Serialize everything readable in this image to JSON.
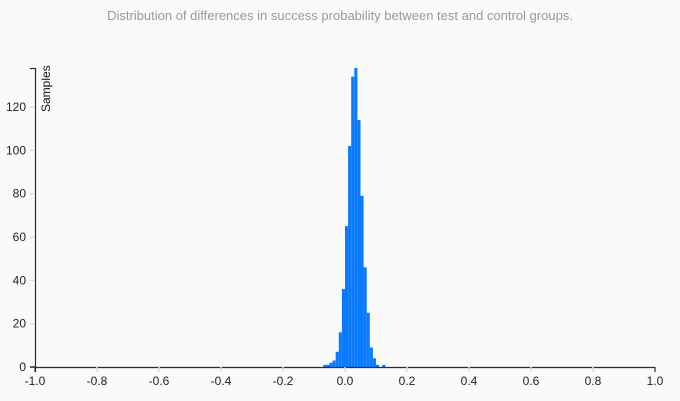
{
  "title": "Distribution of differences in success probability between test and control groups.",
  "colors": {
    "bar": "#0a7bff",
    "axis": "#1f2d3d",
    "tick": "#dddddd",
    "title": "#999999"
  },
  "chart_data": {
    "type": "bar",
    "title": "Distribution of differences in success probability between test and control groups.",
    "xlabel": "",
    "ylabel": "Samples",
    "xlim": [
      -1.0,
      1.0
    ],
    "ylim": [
      0,
      138
    ],
    "grid": false,
    "legend": null,
    "x_ticks": [
      "-1.0",
      "-0.8",
      "-0.6",
      "-0.4",
      "-0.2",
      "0.0",
      "0.2",
      "0.4",
      "0.6",
      "0.8",
      "1.0"
    ],
    "y_ticks": [
      "0",
      "20",
      "40",
      "60",
      "80",
      "100",
      "120"
    ],
    "bin_width": 0.01,
    "bins": [
      {
        "x": -0.07,
        "count": 1
      },
      {
        "x": -0.06,
        "count": 1
      },
      {
        "x": -0.05,
        "count": 2
      },
      {
        "x": -0.04,
        "count": 3
      },
      {
        "x": -0.03,
        "count": 7
      },
      {
        "x": -0.02,
        "count": 16
      },
      {
        "x": -0.01,
        "count": 36
      },
      {
        "x": 0.0,
        "count": 65
      },
      {
        "x": 0.01,
        "count": 102
      },
      {
        "x": 0.02,
        "count": 134
      },
      {
        "x": 0.03,
        "count": 138
      },
      {
        "x": 0.04,
        "count": 114
      },
      {
        "x": 0.05,
        "count": 79
      },
      {
        "x": 0.06,
        "count": 46
      },
      {
        "x": 0.07,
        "count": 25
      },
      {
        "x": 0.08,
        "count": 9
      },
      {
        "x": 0.09,
        "count": 4
      },
      {
        "x": 0.1,
        "count": 1
      },
      {
        "x": 0.11,
        "count": 0
      },
      {
        "x": 0.12,
        "count": 1
      }
    ]
  }
}
